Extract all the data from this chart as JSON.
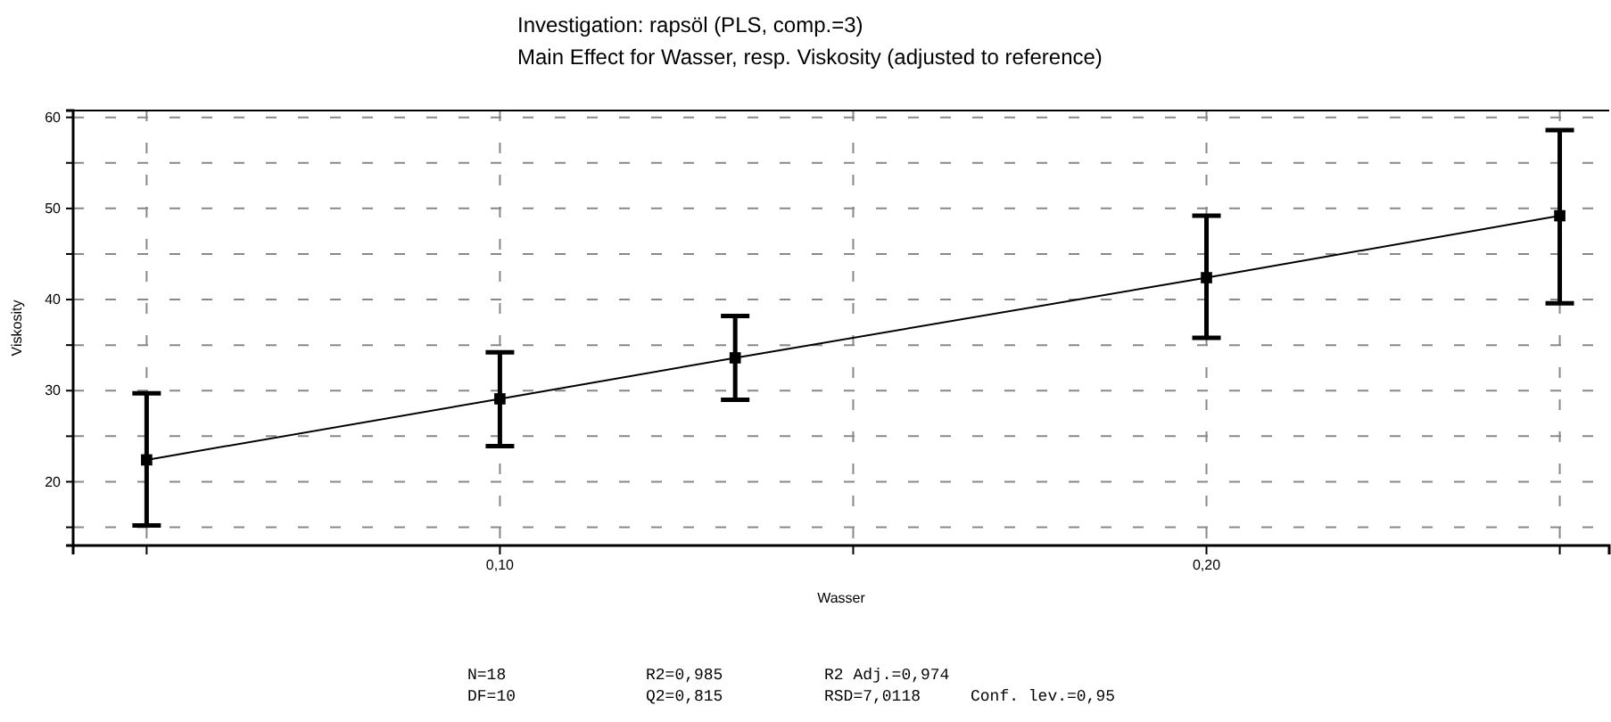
{
  "chart_data": {
    "type": "line",
    "title": "Investigation: rapsöl (PLS, comp.=3)",
    "subtitle": "Main Effect for Wasser, resp. Viskosity (adjusted to reference)",
    "xlabel": "Wasser",
    "ylabel": "Viskosity",
    "x": [
      0.05,
      0.1,
      0.1333,
      0.2,
      0.25
    ],
    "series": [
      {
        "color": "#000000",
        "values": [
          22.4,
          29.1,
          33.6,
          42.4,
          49.2
        ],
        "errors": [
          [
            15.2,
            29.7
          ],
          [
            23.9,
            34.2
          ],
          [
            29.0,
            38.2
          ],
          [
            35.8,
            49.2
          ],
          [
            39.6,
            58.6
          ]
        ]
      }
    ],
    "marker": "square",
    "line_style": "solid",
    "grid": true,
    "xlim": [
      0.0396,
      0.257
    ],
    "xticks": [
      {
        "value": 0.05,
        "label": null
      },
      {
        "value": 0.1,
        "label": "0,10"
      },
      {
        "value": 0.15,
        "label": null
      },
      {
        "value": 0.2,
        "label": "0,20"
      },
      {
        "value": 0.25,
        "label": null
      }
    ],
    "ylim": [
      13,
      60.75
    ],
    "yticks": [
      {
        "value": 15,
        "label": null
      },
      20,
      {
        "value": 25,
        "label": null
      },
      30,
      {
        "value": 35,
        "label": null
      },
      40,
      {
        "value": 45,
        "label": null
      },
      50,
      {
        "value": 55,
        "label": null
      },
      60
    ],
    "annotations": [
      "N=18",
      "R2=0,985",
      "R2 Adj.=0,974",
      "DF=10",
      "Q2=0,815",
      "RSD=7,0118",
      "Conf. lev.=0,95"
    ]
  }
}
